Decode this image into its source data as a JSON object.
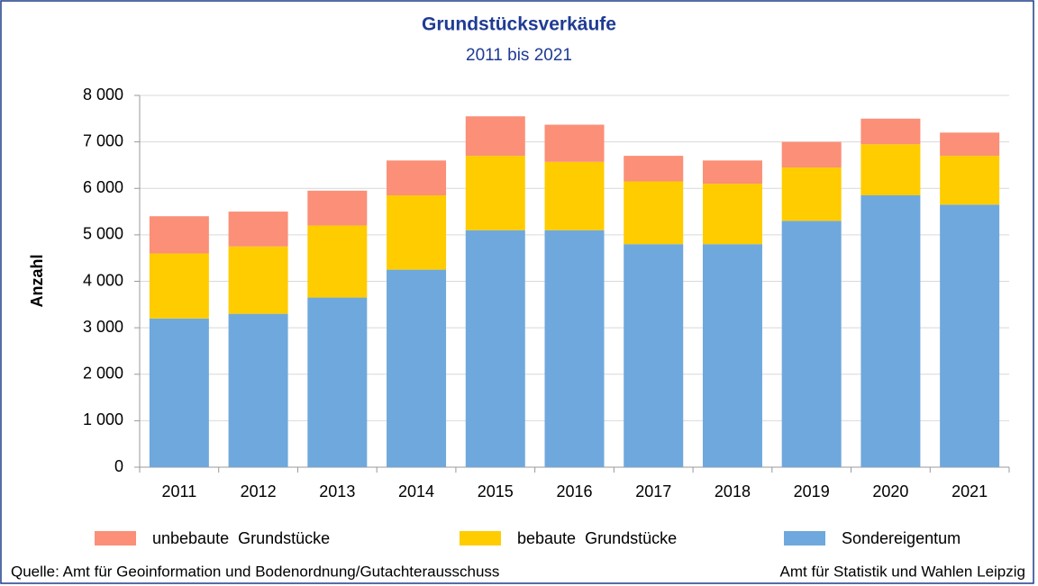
{
  "chart_data": {
    "type": "stacked_bar",
    "title": "Grundstücksverkäufe",
    "subtitle": "2011 bis 2021",
    "y_label": "Anzahl",
    "categories": [
      "2011",
      "2012",
      "2013",
      "2014",
      "2015",
      "2016",
      "2017",
      "2018",
      "2019",
      "2020",
      "2021"
    ],
    "series": [
      {
        "name": "Sondereigentum",
        "color": "#6fa8dc",
        "values": [
          3200,
          3300,
          3650,
          4250,
          5100,
          5100,
          4800,
          4800,
          5300,
          5850,
          5650
        ]
      },
      {
        "name": "bebaute  Grundstücke",
        "color": "#ffcc00",
        "values": [
          1400,
          1450,
          1550,
          1600,
          1600,
          1470,
          1350,
          1300,
          1150,
          1100,
          1050
        ]
      },
      {
        "name": "unbebaute  Grundstücke",
        "color": "#fb8f78",
        "values": [
          800,
          750,
          750,
          750,
          850,
          800,
          550,
          500,
          550,
          550,
          500
        ]
      }
    ],
    "ylim": [
      0,
      8000
    ],
    "yticks": [
      0,
      {
        "value": 1000,
        "label": "1 000"
      },
      {
        "value": 2000,
        "label": "2 000"
      },
      {
        "value": 3000,
        "label": "3 000"
      },
      {
        "value": 4000,
        "label": "4 000"
      },
      {
        "value": 5000,
        "label": "5 000"
      },
      {
        "value": 6000,
        "label": "6 000"
      },
      {
        "value": 7000,
        "label": "7 000"
      },
      {
        "value": 8000,
        "label": "8 000"
      }
    ],
    "grid": true,
    "source_left": "Quelle: Amt für Geoinformation und Bodenordnung/Gutachterausschuss",
    "source_right": "Amt für Statistik und Wahlen Leipzig"
  }
}
